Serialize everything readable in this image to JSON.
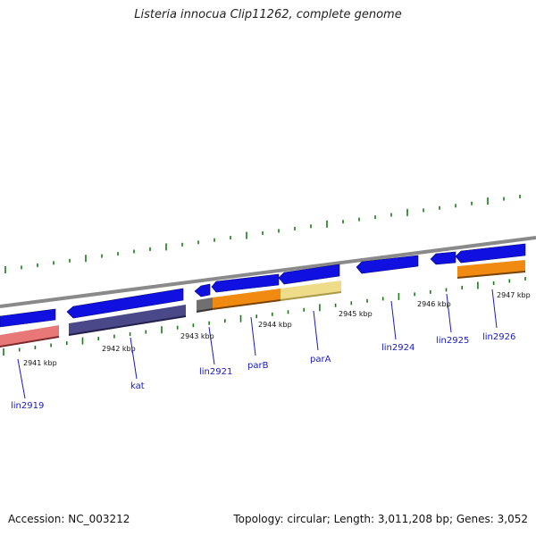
{
  "title": "Listeria innocua Clip11262, complete genome",
  "footer": {
    "accession": "Accession: NC_003212",
    "topology": "Topology: circular; Length: 3,011,208 bp; Genes: 3,052"
  },
  "colors": {
    "backbone": "#8a8a8a",
    "tick": "#1a7a1a",
    "cds": "#1010e0",
    "label": "#1a1ab8",
    "pink": "#e87878",
    "slate": "#4a4888",
    "gray": "#707070",
    "orange": "#f08a10",
    "khaki": "#eedc88"
  },
  "map": {
    "kbp_labels": [
      "2941 kbp",
      "2942 kbp",
      "2943 kbp",
      "2944 kbp",
      "2945 kbp",
      "2946 kbp",
      "2947 kbp"
    ],
    "gene_labels": [
      "lin2919",
      "kat",
      "lin2921",
      "parB",
      "parA",
      "lin2924",
      "lin2925",
      "lin2926"
    ]
  }
}
